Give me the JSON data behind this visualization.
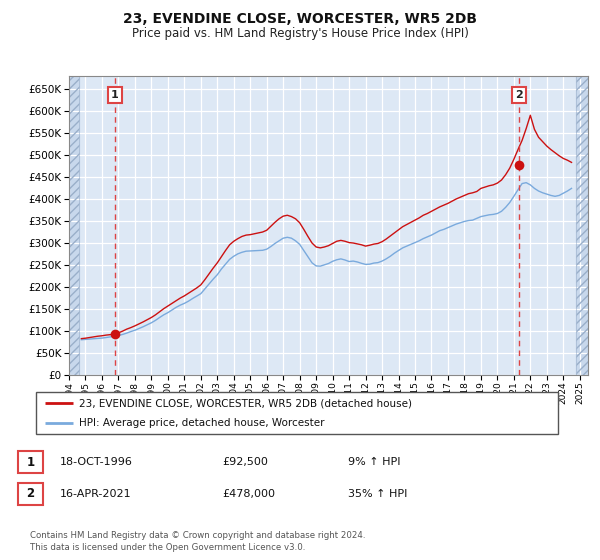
{
  "title": "23, EVENDINE CLOSE, WORCESTER, WR5 2DB",
  "subtitle": "Price paid vs. HM Land Registry's House Price Index (HPI)",
  "ylim": [
    0,
    680000
  ],
  "yticks": [
    0,
    50000,
    100000,
    150000,
    200000,
    250000,
    300000,
    350000,
    400000,
    450000,
    500000,
    550000,
    600000,
    650000
  ],
  "xlim_start": 1994.0,
  "xlim_end": 2025.5,
  "hatch_left_end": 1994.58,
  "hatch_right_start": 2024.75,
  "xtick_years": [
    1994,
    1995,
    1996,
    1997,
    1998,
    1999,
    2000,
    2001,
    2002,
    2003,
    2004,
    2005,
    2006,
    2007,
    2008,
    2009,
    2010,
    2011,
    2012,
    2013,
    2014,
    2015,
    2016,
    2017,
    2018,
    2019,
    2020,
    2021,
    2022,
    2023,
    2024,
    2025
  ],
  "sale1_x": 1996.79,
  "sale1_y": 92500,
  "sale1_label": "1",
  "sale1_date": "18-OCT-1996",
  "sale1_price": "£92,500",
  "sale1_hpi": "9% ↑ HPI",
  "sale2_x": 2021.29,
  "sale2_y": 478000,
  "sale2_label": "2",
  "sale2_date": "16-APR-2021",
  "sale2_price": "£478,000",
  "sale2_hpi": "35% ↑ HPI",
  "legend_line1": "23, EVENDINE CLOSE, WORCESTER, WR5 2DB (detached house)",
  "legend_line2": "HPI: Average price, detached house, Worcester",
  "footer": "Contains HM Land Registry data © Crown copyright and database right 2024.\nThis data is licensed under the Open Government Licence v3.0.",
  "hpi_color": "#7aaadd",
  "price_color": "#cc1111",
  "vline_color": "#dd4444",
  "plot_bg": "#dde8f5",
  "hatch_bg": "#c8d8ec",
  "grid_color": "#ffffff",
  "hpi_x": [
    1994.75,
    1995.0,
    1995.25,
    1995.5,
    1995.75,
    1996.0,
    1996.25,
    1996.5,
    1996.75,
    1997.0,
    1997.25,
    1997.5,
    1997.75,
    1998.0,
    1998.25,
    1998.5,
    1998.75,
    1999.0,
    1999.25,
    1999.5,
    1999.75,
    2000.0,
    2000.25,
    2000.5,
    2000.75,
    2001.0,
    2001.25,
    2001.5,
    2001.75,
    2002.0,
    2002.25,
    2002.5,
    2002.75,
    2003.0,
    2003.25,
    2003.5,
    2003.75,
    2004.0,
    2004.25,
    2004.5,
    2004.75,
    2005.0,
    2005.25,
    2005.5,
    2005.75,
    2006.0,
    2006.25,
    2006.5,
    2006.75,
    2007.0,
    2007.25,
    2007.5,
    2007.75,
    2008.0,
    2008.25,
    2008.5,
    2008.75,
    2009.0,
    2009.25,
    2009.5,
    2009.75,
    2010.0,
    2010.25,
    2010.5,
    2010.75,
    2011.0,
    2011.25,
    2011.5,
    2011.75,
    2012.0,
    2012.25,
    2012.5,
    2012.75,
    2013.0,
    2013.25,
    2013.5,
    2013.75,
    2014.0,
    2014.25,
    2014.5,
    2014.75,
    2015.0,
    2015.25,
    2015.5,
    2015.75,
    2016.0,
    2016.25,
    2016.5,
    2016.75,
    2017.0,
    2017.25,
    2017.5,
    2017.75,
    2018.0,
    2018.25,
    2018.5,
    2018.75,
    2019.0,
    2019.25,
    2019.5,
    2019.75,
    2020.0,
    2020.25,
    2020.5,
    2020.75,
    2021.0,
    2021.25,
    2021.5,
    2021.75,
    2022.0,
    2022.25,
    2022.5,
    2022.75,
    2023.0,
    2023.25,
    2023.5,
    2023.75,
    2024.0,
    2024.25,
    2024.5
  ],
  "hpi_y": [
    80500,
    81200,
    82000,
    82800,
    83500,
    84200,
    85500,
    87000,
    88500,
    90000,
    92500,
    95500,
    99000,
    102000,
    106000,
    110000,
    114500,
    119000,
    124500,
    131000,
    137000,
    142000,
    148000,
    154000,
    159000,
    163000,
    168000,
    174000,
    179500,
    185000,
    196000,
    207000,
    218000,
    228000,
    241000,
    252000,
    263000,
    270000,
    275500,
    279000,
    281500,
    282000,
    282500,
    283000,
    283500,
    286000,
    292000,
    299000,
    305000,
    311000,
    313000,
    311000,
    305000,
    297000,
    283000,
    269000,
    255000,
    248000,
    247500,
    250500,
    253500,
    258500,
    262000,
    264000,
    261500,
    258000,
    259000,
    257000,
    254000,
    251500,
    252000,
    254500,
    255500,
    259000,
    264000,
    270000,
    277000,
    283000,
    289000,
    293000,
    297000,
    301000,
    305000,
    310000,
    314000,
    318000,
    323000,
    328000,
    331000,
    335000,
    339000,
    343000,
    346000,
    349000,
    351000,
    352000,
    356000,
    360000,
    362000,
    364000,
    365000,
    367000,
    372000,
    381000,
    392000,
    406000,
    421000,
    435000,
    437000,
    432000,
    424000,
    418000,
    414000,
    411000,
    408000,
    406000,
    408000,
    413000,
    418000,
    424000
  ],
  "price_x": [
    1994.75,
    1995.0,
    1995.25,
    1995.5,
    1995.75,
    1996.0,
    1996.25,
    1996.5,
    1996.75,
    1997.0,
    1997.25,
    1997.5,
    1997.75,
    1998.0,
    1998.25,
    1998.5,
    1998.75,
    1999.0,
    1999.25,
    1999.5,
    1999.75,
    2000.0,
    2000.25,
    2000.5,
    2000.75,
    2001.0,
    2001.25,
    2001.5,
    2001.75,
    2002.0,
    2002.25,
    2002.5,
    2002.75,
    2003.0,
    2003.25,
    2003.5,
    2003.75,
    2004.0,
    2004.25,
    2004.5,
    2004.75,
    2005.0,
    2005.25,
    2005.5,
    2005.75,
    2006.0,
    2006.25,
    2006.5,
    2006.75,
    2007.0,
    2007.25,
    2007.5,
    2007.75,
    2008.0,
    2008.25,
    2008.5,
    2008.75,
    2009.0,
    2009.25,
    2009.5,
    2009.75,
    2010.0,
    2010.25,
    2010.5,
    2010.75,
    2011.0,
    2011.25,
    2011.5,
    2011.75,
    2012.0,
    2012.25,
    2012.5,
    2012.75,
    2013.0,
    2013.25,
    2013.5,
    2013.75,
    2014.0,
    2014.25,
    2014.5,
    2014.75,
    2015.0,
    2015.25,
    2015.5,
    2015.75,
    2016.0,
    2016.25,
    2016.5,
    2016.75,
    2017.0,
    2017.25,
    2017.5,
    2017.75,
    2018.0,
    2018.25,
    2018.5,
    2018.75,
    2019.0,
    2019.25,
    2019.5,
    2019.75,
    2020.0,
    2020.25,
    2020.5,
    2020.75,
    2021.0,
    2021.25,
    2021.5,
    2021.75,
    2022.0,
    2022.25,
    2022.5,
    2022.75,
    2023.0,
    2023.25,
    2023.5,
    2023.75,
    2024.0,
    2024.25,
    2024.5
  ],
  "price_y": [
    83000,
    84000,
    85500,
    87000,
    88500,
    89500,
    91000,
    92000,
    93000,
    96000,
    100000,
    104500,
    108000,
    112000,
    116500,
    121000,
    126000,
    131000,
    137000,
    144000,
    151000,
    157000,
    163000,
    169000,
    175000,
    180000,
    186000,
    192000,
    198000,
    205000,
    217000,
    230000,
    243000,
    255000,
    269000,
    283000,
    296000,
    304000,
    310000,
    315000,
    318000,
    319000,
    321000,
    323000,
    325000,
    329000,
    338000,
    347000,
    355000,
    361000,
    363000,
    360000,
    355000,
    346000,
    331000,
    315000,
    300000,
    291000,
    289000,
    291000,
    294000,
    299000,
    304000,
    306000,
    304000,
    301000,
    300000,
    298000,
    296000,
    293000,
    295000,
    297500,
    299000,
    303000,
    309000,
    316000,
    323000,
    330000,
    337000,
    342000,
    347000,
    352000,
    357000,
    363000,
    367000,
    372000,
    377000,
    382000,
    386000,
    390000,
    395000,
    400000,
    404000,
    408000,
    412000,
    414000,
    417000,
    424000,
    427000,
    430000,
    432000,
    436000,
    443000,
    455000,
    470000,
    490000,
    512000,
    533000,
    560000,
    590000,
    558000,
    540000,
    530000,
    520000,
    512000,
    505000,
    498000,
    492000,
    488000,
    483000
  ]
}
